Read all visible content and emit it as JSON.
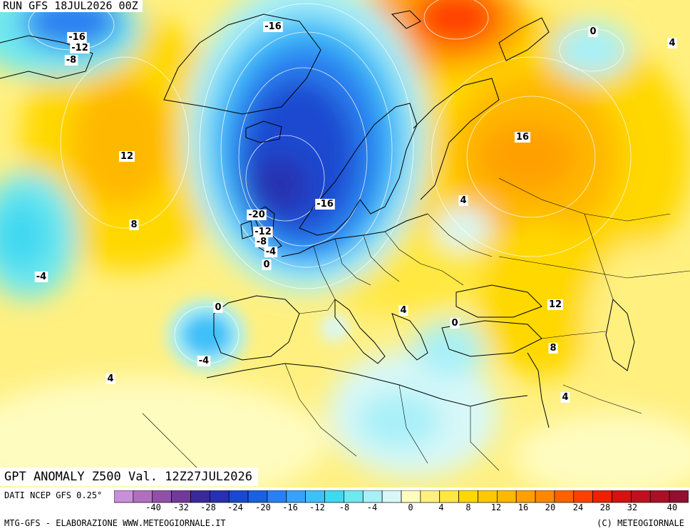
{
  "header": {
    "run_label": "RUN GFS 18JUL2026 00Z"
  },
  "map": {
    "title": "GPT ANOMALY Z500 Val. 12Z27JUL2026",
    "contour_labels": [
      {
        "text": "-16",
        "place": "Canada NE (upper-left)"
      },
      {
        "text": "-12",
        "place": "Canada NE (upper-left)"
      },
      {
        "text": "-8",
        "place": "Canada NE (upper-left)"
      },
      {
        "text": "-16",
        "place": "Greenland"
      },
      {
        "text": "0",
        "place": "Barents Sea"
      },
      {
        "text": "4",
        "place": "NE corner"
      },
      {
        "text": "12",
        "place": "North Atlantic"
      },
      {
        "text": "16",
        "place": "Western Russia"
      },
      {
        "text": "-20",
        "place": "North Sea"
      },
      {
        "text": "-16",
        "place": "Southern Norway"
      },
      {
        "text": "-12",
        "place": "English Channel"
      },
      {
        "text": "-8",
        "place": "English Channel"
      },
      {
        "text": "-4",
        "place": "English Channel"
      },
      {
        "text": "0",
        "place": "Brittany"
      },
      {
        "text": "8",
        "place": "Mid Atlantic"
      },
      {
        "text": "-4",
        "place": "West Atlantic"
      },
      {
        "text": "4",
        "place": "Poland"
      },
      {
        "text": "0",
        "place": "Portugal coast"
      },
      {
        "text": "-4",
        "place": "Iberia west"
      },
      {
        "text": "4",
        "place": "Balkans"
      },
      {
        "text": "0",
        "place": "Aegean"
      },
      {
        "text": "12",
        "place": "Black Sea region"
      },
      {
        "text": "8",
        "place": "Eastern Mediterranean"
      },
      {
        "text": "4",
        "place": "Levant"
      },
      {
        "text": "4",
        "place": "South Atlantic"
      }
    ]
  },
  "colorbar": {
    "ticks": [
      "-40",
      "-32",
      "-28",
      "-24",
      "-20",
      "-16",
      "-12",
      "-8",
      "-4",
      "0",
      "4",
      "8",
      "12",
      "16",
      "20",
      "24",
      "28",
      "32",
      "40"
    ],
    "colors": [
      "#c890d8",
      "#b070c0",
      "#9050a8",
      "#703a98",
      "#3a2a98",
      "#2830b0",
      "#1a48d0",
      "#1a60e0",
      "#2a80f0",
      "#3aa0f8",
      "#40c0f8",
      "#40d8f0",
      "#70e8f0",
      "#a8f0f8",
      "#d8f8f8",
      "#fffcc0",
      "#fff080",
      "#ffe840",
      "#ffd800",
      "#ffc800",
      "#ffb800",
      "#ffa000",
      "#ff8800",
      "#ff6000",
      "#ff4000",
      "#f02000",
      "#d81010",
      "#c01020",
      "#a81028",
      "#901030"
    ]
  },
  "footer": {
    "source": "DATI NCEP GFS 0.25°",
    "credit": "MTG-GFS - ELABORAZIONE WWW.METEOGIORNALE.IT",
    "copyright": "(C) METEOGIORNALE"
  }
}
